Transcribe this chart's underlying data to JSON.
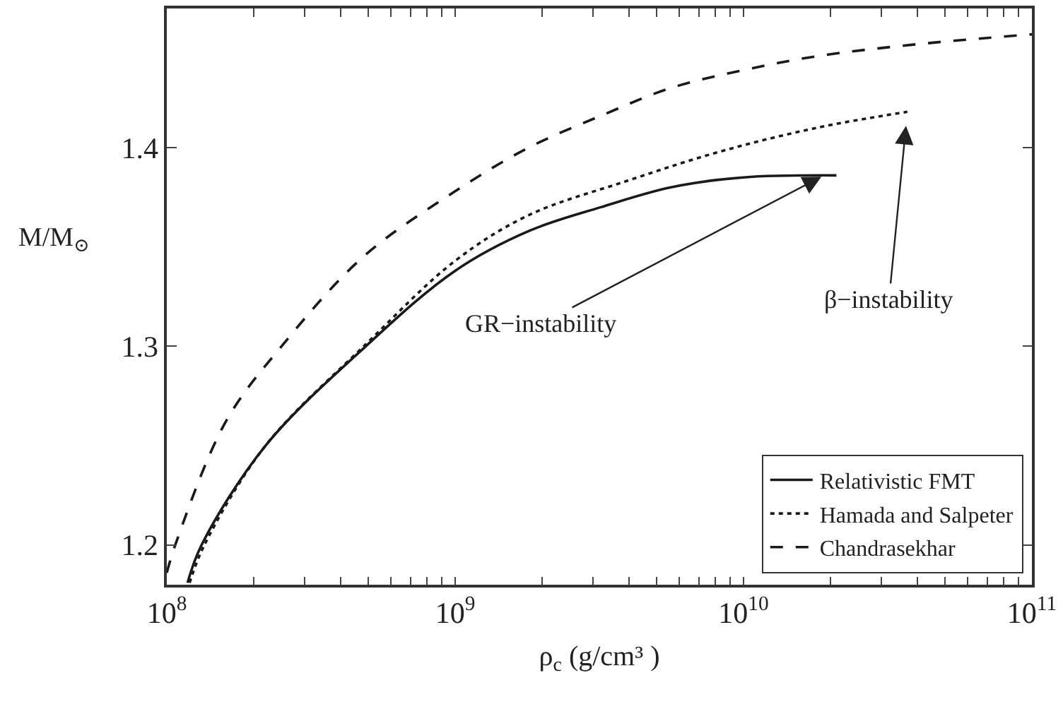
{
  "chart_data": {
    "type": "line",
    "xlabel": "ρ$_{c}$ (g/cm³ )",
    "ylabel": "M/M$_{⊙}$",
    "log": "x",
    "grid": false,
    "legend": "bottom right",
    "marker": "none",
    "xlim": [
      100000000.0,
      100000000000.0
    ],
    "ylim": [
      1.18,
      1.47
    ],
    "xticks": [
      {
        "value": 100000000.0,
        "label": "10$^{8}$"
      },
      {
        "value": 200000000.0,
        "label": null
      },
      {
        "value": 300000000.0,
        "label": null
      },
      {
        "value": 400000000.0,
        "label": null
      },
      {
        "value": 500000000.0,
        "label": null
      },
      {
        "value": 600000000.0,
        "label": null
      },
      {
        "value": 700000000.0,
        "label": null
      },
      {
        "value": 800000000.0,
        "label": null
      },
      {
        "value": 900000000.0,
        "label": null
      },
      {
        "value": 1000000000.0,
        "label": "10$^{9}$"
      },
      {
        "value": 2000000000.0,
        "label": null
      },
      {
        "value": 3000000000.0,
        "label": null
      },
      {
        "value": 4000000000.0,
        "label": null
      },
      {
        "value": 5000000000.0,
        "label": null
      },
      {
        "value": 6000000000.0,
        "label": null
      },
      {
        "value": 7000000000.0,
        "label": null
      },
      {
        "value": 8000000000.0,
        "label": null
      },
      {
        "value": 9000000000.0,
        "label": null
      },
      {
        "value": 10000000000.0,
        "label": "10$^{10}$"
      },
      {
        "value": 20000000000.0,
        "label": null
      },
      {
        "value": 30000000000.0,
        "label": null
      },
      {
        "value": 40000000000.0,
        "label": null
      },
      {
        "value": 50000000000.0,
        "label": null
      },
      {
        "value": 60000000000.0,
        "label": null
      },
      {
        "value": 70000000000.0,
        "label": null
      },
      {
        "value": 80000000000.0,
        "label": null
      },
      {
        "value": 90000000000.0,
        "label": null
      },
      {
        "value": 100000000000.0,
        "label": "10$^{11}$"
      }
    ],
    "yticks": [
      1.2,
      1.3,
      1.4
    ],
    "series": [
      {
        "name": "Relativistic FMT",
        "color": "#1a1a1a",
        "line_style": "solid",
        "x": [
          118000000.0,
          132000000.0,
          220000000.0,
          490000000.0,
          1000000000.0,
          1800000000.0,
          3200000000.0,
          5600000000.0,
          10000000000.0,
          21000000000.0
        ],
        "values": [
          1.181,
          1.2,
          1.25,
          1.3,
          1.338,
          1.358,
          1.37,
          1.38,
          1.385,
          1.386
        ]
      },
      {
        "name": "Hamada and Salpeter",
        "color": "#1a1a1a",
        "line_style": "dotted",
        "x": [
          120000000.0,
          135000000.0,
          220000000.0,
          490000000.0,
          1000000000.0,
          1800000000.0,
          3900000000.0,
          8300000000.0,
          18000000000.0,
          37000000000.0
        ],
        "values": [
          1.181,
          1.2,
          1.25,
          1.301,
          1.343,
          1.366,
          1.383,
          1.398,
          1.41,
          1.418
        ]
      },
      {
        "name": "Chandrasekhar",
        "color": "#1a1a1a",
        "line_style": "dashed",
        "x": [
          100000000.0,
          107000000.0,
          160000000.0,
          250000000.0,
          480000000.0,
          1000000000.0,
          1800000000.0,
          3200000000.0,
          5600000000.0,
          10000000000.0,
          18000000000.0,
          40000000000.0,
          100000000000.0
        ],
        "values": [
          1.186,
          1.2,
          1.262,
          1.3,
          1.345,
          1.378,
          1.4,
          1.416,
          1.43,
          1.439,
          1.446,
          1.452,
          1.457
        ]
      }
    ],
    "annotations": [
      {
        "text": "GR−instability",
        "x": 19000000000.0,
        "y": 1.386
      },
      {
        "text": "β−instability",
        "x": 37000000000.0,
        "y": 1.418
      }
    ]
  }
}
